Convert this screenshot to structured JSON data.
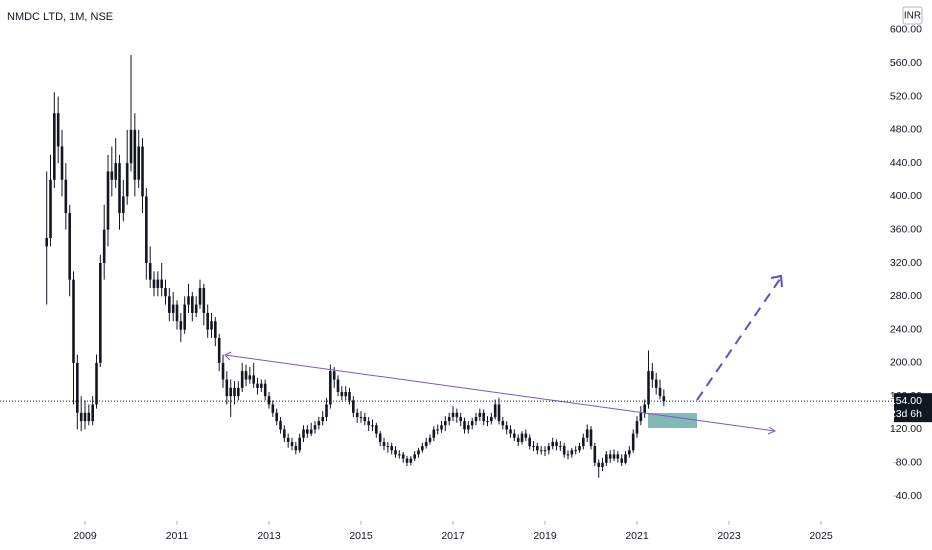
{
  "chart_data": {
    "type": "candlestick",
    "title": "NMDC LTD, 1M, NSE",
    "currency": "INR",
    "x": [
      2008.167,
      2008.25,
      2008.333,
      2008.417,
      2008.5,
      2008.583,
      2008.667,
      2008.75,
      2008.833,
      2008.917,
      2009.0,
      2009.083,
      2009.167,
      2009.25,
      2009.333,
      2009.417,
      2009.5,
      2009.583,
      2009.667,
      2009.75,
      2009.833,
      2009.917,
      2010.0,
      2010.083,
      2010.167,
      2010.25,
      2010.333,
      2010.417,
      2010.5,
      2010.583,
      2010.667,
      2010.75,
      2010.833,
      2010.917,
      2011.0,
      2011.083,
      2011.167,
      2011.25,
      2011.333,
      2011.417,
      2011.5,
      2011.583,
      2011.667,
      2011.75,
      2011.833,
      2011.917,
      2012.0,
      2012.083,
      2012.167,
      2012.25,
      2012.333,
      2012.417,
      2012.5,
      2012.583,
      2012.667,
      2012.75,
      2012.833,
      2012.917,
      2013.0,
      2013.083,
      2013.167,
      2013.25,
      2013.333,
      2013.417,
      2013.5,
      2013.583,
      2013.667,
      2013.75,
      2013.833,
      2013.917,
      2014.0,
      2014.083,
      2014.167,
      2014.25,
      2014.333,
      2014.417,
      2014.5,
      2014.583,
      2014.667,
      2014.75,
      2014.833,
      2014.917,
      2015.0,
      2015.083,
      2015.167,
      2015.25,
      2015.333,
      2015.417,
      2015.5,
      2015.583,
      2015.667,
      2015.75,
      2015.833,
      2015.917,
      2016.0,
      2016.083,
      2016.167,
      2016.25,
      2016.333,
      2016.417,
      2016.5,
      2016.583,
      2016.667,
      2016.75,
      2016.833,
      2016.917,
      2017.0,
      2017.083,
      2017.167,
      2017.25,
      2017.333,
      2017.417,
      2017.5,
      2017.583,
      2017.667,
      2017.75,
      2017.833,
      2017.917,
      2018.0,
      2018.083,
      2018.167,
      2018.25,
      2018.333,
      2018.417,
      2018.5,
      2018.583,
      2018.667,
      2018.75,
      2018.833,
      2018.917,
      2019.0,
      2019.083,
      2019.167,
      2019.25,
      2019.333,
      2019.417,
      2019.5,
      2019.583,
      2019.667,
      2019.75,
      2019.833,
      2019.917,
      2020.0,
      2020.083,
      2020.167,
      2020.25,
      2020.333,
      2020.417,
      2020.5,
      2020.583,
      2020.667,
      2020.75,
      2020.833,
      2020.917,
      2021.0,
      2021.083,
      2021.167,
      2021.25,
      2021.333,
      2021.417,
      2021.5,
      2021.583
    ],
    "open": [
      340,
      350,
      420,
      500,
      460,
      420,
      380,
      300,
      200,
      140,
      130,
      140,
      130,
      150,
      200,
      320,
      360,
      430,
      420,
      440,
      380,
      400,
      440,
      480,
      420,
      460,
      400,
      320,
      300,
      290,
      300,
      290,
      280,
      260,
      270,
      250,
      240,
      270,
      280,
      260,
      270,
      290,
      260,
      240,
      250,
      230,
      200,
      180,
      160,
      170,
      160,
      170,
      190,
      180,
      185,
      175,
      170,
      175,
      160,
      150,
      140,
      130,
      120,
      110,
      105,
      100,
      95,
      110,
      120,
      115,
      120,
      125,
      130,
      135,
      150,
      190,
      180,
      165,
      160,
      165,
      155,
      140,
      135,
      135,
      130,
      125,
      125,
      115,
      105,
      100,
      100,
      95,
      90,
      90,
      85,
      80,
      85,
      90,
      95,
      100,
      105,
      110,
      120,
      120,
      125,
      130,
      135,
      140,
      135,
      130,
      120,
      125,
      130,
      135,
      140,
      130,
      130,
      135,
      150,
      130,
      125,
      120,
      115,
      110,
      105,
      115,
      110,
      100,
      100,
      95,
      95,
      95,
      100,
      105,
      100,
      100,
      90,
      90,
      95,
      95,
      100,
      110,
      120,
      100,
      80,
      75,
      80,
      90,
      85,
      90,
      85,
      80,
      90,
      95,
      115,
      130,
      140,
      150,
      190,
      180,
      170,
      160
    ],
    "high": [
      430,
      450,
      525,
      520,
      480,
      440,
      390,
      310,
      210,
      160,
      155,
      150,
      160,
      210,
      330,
      390,
      450,
      460,
      470,
      450,
      420,
      480,
      570,
      500,
      480,
      470,
      410,
      340,
      310,
      310,
      320,
      300,
      290,
      285,
      275,
      260,
      280,
      295,
      285,
      280,
      300,
      295,
      270,
      260,
      255,
      235,
      210,
      190,
      180,
      178,
      178,
      200,
      198,
      195,
      200,
      182,
      180,
      180,
      165,
      155,
      145,
      135,
      125,
      115,
      110,
      105,
      115,
      125,
      125,
      128,
      130,
      135,
      142,
      158,
      198,
      195,
      185,
      172,
      172,
      170,
      160,
      145,
      142,
      140,
      135,
      132,
      128,
      118,
      110,
      105,
      104,
      100,
      95,
      93,
      88,
      88,
      94,
      98,
      104,
      110,
      114,
      124,
      126,
      130,
      136,
      140,
      148,
      145,
      140,
      134,
      130,
      134,
      140,
      145,
      144,
      136,
      140,
      156,
      158,
      135,
      130,
      125,
      120,
      114,
      118,
      120,
      114,
      106,
      104,
      100,
      100,
      104,
      110,
      108,
      106,
      104,
      95,
      98,
      100,
      104,
      115,
      126,
      124,
      104,
      84,
      86,
      94,
      95,
      96,
      94,
      90,
      94,
      100,
      120,
      136,
      148,
      156,
      215,
      200,
      188,
      180,
      168
    ],
    "low": [
      270,
      340,
      410,
      440,
      400,
      360,
      280,
      150,
      120,
      118,
      120,
      125,
      125,
      145,
      195,
      300,
      340,
      400,
      410,
      360,
      370,
      390,
      430,
      400,
      410,
      380,
      300,
      290,
      280,
      280,
      280,
      270,
      250,
      250,
      240,
      225,
      235,
      260,
      250,
      255,
      265,
      245,
      230,
      230,
      220,
      190,
      170,
      150,
      135,
      150,
      155,
      165,
      172,
      175,
      170,
      162,
      165,
      155,
      145,
      135,
      125,
      115,
      105,
      98,
      95,
      90,
      92,
      105,
      110,
      112,
      115,
      120,
      125,
      130,
      145,
      170,
      160,
      155,
      155,
      150,
      135,
      128,
      128,
      125,
      118,
      118,
      110,
      100,
      95,
      92,
      90,
      86,
      85,
      80,
      76,
      77,
      82,
      86,
      92,
      97,
      102,
      106,
      114,
      116,
      118,
      125,
      130,
      128,
      124,
      115,
      115,
      120,
      125,
      130,
      125,
      124,
      126,
      132,
      126,
      120,
      114,
      110,
      106,
      100,
      102,
      106,
      96,
      94,
      90,
      90,
      88,
      90,
      96,
      95,
      94,
      86,
      84,
      86,
      90,
      92,
      96,
      105,
      96,
      76,
      62,
      70,
      76,
      80,
      82,
      80,
      76,
      78,
      86,
      92,
      110,
      125,
      134,
      145,
      170,
      162,
      156,
      148
    ],
    "close": [
      350,
      420,
      500,
      460,
      420,
      380,
      300,
      200,
      140,
      130,
      140,
      130,
      150,
      200,
      320,
      360,
      430,
      420,
      440,
      380,
      400,
      440,
      480,
      420,
      460,
      400,
      320,
      300,
      290,
      300,
      290,
      280,
      260,
      270,
      250,
      240,
      270,
      280,
      260,
      270,
      290,
      260,
      240,
      250,
      230,
      200,
      180,
      160,
      170,
      160,
      170,
      190,
      180,
      185,
      175,
      170,
      175,
      160,
      150,
      140,
      130,
      120,
      110,
      105,
      100,
      95,
      110,
      120,
      115,
      120,
      125,
      130,
      135,
      150,
      190,
      180,
      165,
      160,
      165,
      155,
      140,
      135,
      135,
      130,
      125,
      125,
      115,
      105,
      100,
      100,
      95,
      90,
      90,
      85,
      80,
      85,
      90,
      95,
      100,
      105,
      110,
      120,
      120,
      125,
      130,
      135,
      140,
      135,
      130,
      120,
      125,
      130,
      135,
      140,
      130,
      130,
      135,
      150,
      130,
      125,
      120,
      115,
      110,
      105,
      115,
      110,
      100,
      100,
      95,
      95,
      95,
      100,
      105,
      100,
      100,
      90,
      90,
      95,
      95,
      100,
      110,
      120,
      100,
      80,
      75,
      80,
      90,
      85,
      90,
      85,
      80,
      90,
      95,
      115,
      130,
      140,
      150,
      190,
      180,
      170,
      160,
      154
    ],
    "color": "#131722",
    "xlim": [
      2007.152,
      2026.565
    ],
    "xticks": [
      2009,
      2011,
      2013,
      2015,
      2017,
      2019,
      2021,
      2023,
      2025
    ],
    "ylim": [
      11.2,
      636
    ],
    "yticks": [
      {
        "value": 40,
        "label": "40.00"
      },
      {
        "value": 80,
        "label": "80.00"
      },
      {
        "value": 120,
        "label": "120.00"
      },
      {
        "value": 160,
        "label": "160.00"
      },
      {
        "value": 200,
        "label": "200.00"
      },
      {
        "value": 240,
        "label": "240.00"
      },
      {
        "value": 280,
        "label": "280.00"
      },
      {
        "value": 320,
        "label": "320.00"
      },
      {
        "value": 360,
        "label": "360.00"
      },
      {
        "value": 400,
        "label": "400.00"
      },
      {
        "value": 440,
        "label": "440.00"
      },
      {
        "value": 480,
        "label": "480.00"
      },
      {
        "value": 520,
        "label": "520.00"
      },
      {
        "value": 560,
        "label": "560.00"
      },
      {
        "value": 600,
        "label": "600.00"
      }
    ],
    "last_price": {
      "value": 154,
      "label": "154.00"
    },
    "countdown": "23d 6h"
  }
}
